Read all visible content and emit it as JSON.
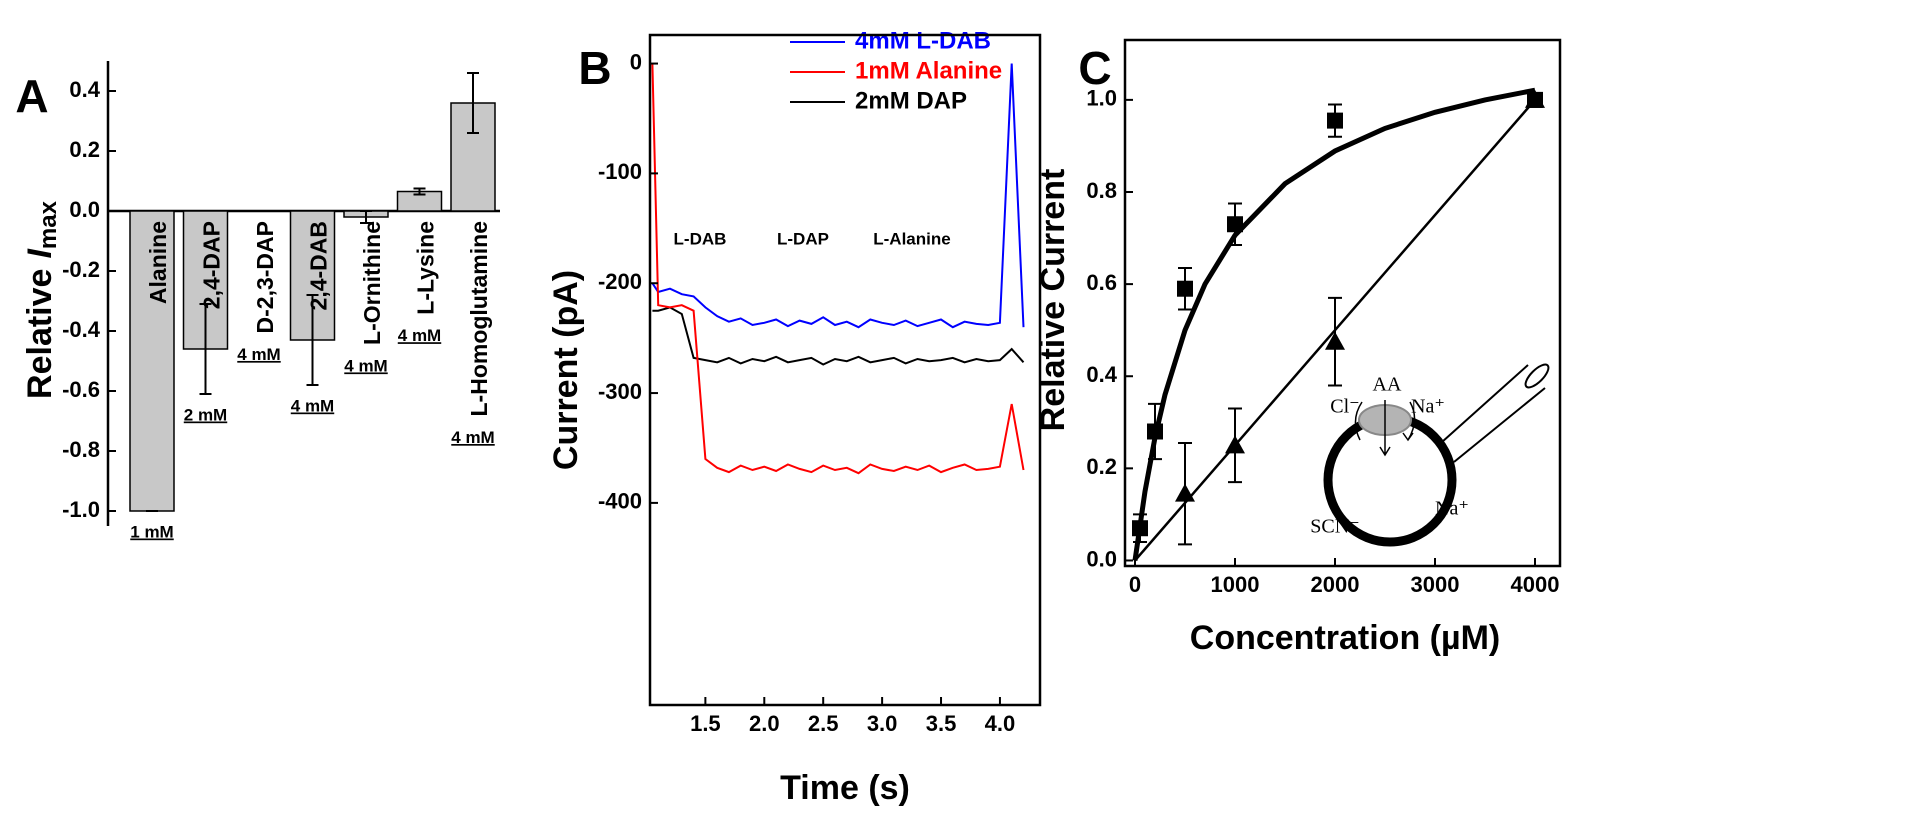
{
  "chart_data": [
    {
      "type": "bar",
      "panel_label": "A",
      "y_label": {
        "text": "Relative",
        "symbol": "I",
        "subscript": "max"
      },
      "categories": [
        "Alanine",
        "2,4-DAP",
        "D-2,3-DAP",
        "2,4-DAB",
        "L-Ornithine",
        "L-Lysine",
        "L-Homoglutamine"
      ],
      "values": [
        -1.0,
        -0.46,
        0,
        -0.43,
        -0.02,
        0.065,
        0.36
      ],
      "errors": [
        0,
        0.15,
        0,
        0.15,
        0.02,
        0.01,
        0.1
      ],
      "concentrations": [
        "1 mM",
        "2 mM",
        "4 mM",
        "4 mM",
        "4 mM",
        "4 mM",
        "4 mM"
      ],
      "color": "#c8c8c8",
      "ylim": [
        -1.05,
        0.5
      ],
      "yticks": [
        {
          "value": -1,
          "label": "-1.0"
        },
        -0.8,
        -0.6,
        -0.4,
        -0.2,
        {
          "value": 0,
          "label": "0.0"
        },
        0.2,
        0.4
      ]
    },
    {
      "type": "line",
      "panel_label": "B",
      "x_label": "Time (s)",
      "y_label": "Current (pA)",
      "x": [
        1.05,
        1.1,
        1.2,
        1.3,
        1.4,
        1.5,
        1.6,
        1.7,
        1.8,
        1.9,
        2.0,
        2.1,
        2.2,
        2.3,
        2.4,
        2.5,
        2.6,
        2.7,
        2.8,
        2.9,
        3.0,
        3.1,
        3.2,
        3.3,
        3.4,
        3.5,
        3.6,
        3.7,
        3.8,
        3.9,
        4.0,
        4.1,
        4.2
      ],
      "series": [
        {
          "name": "4mM L-DAB",
          "color": "#0000ff",
          "values": [
            -200,
            -208,
            -205,
            -210,
            -212,
            -222,
            -230,
            -235,
            -232,
            -238,
            -236,
            -233,
            -239,
            -234,
            -237,
            -231,
            -238,
            -235,
            -240,
            -233,
            -236,
            -238,
            -234,
            -239,
            -236,
            -233,
            -240,
            -235,
            -237,
            -238,
            -236,
            0,
            -240
          ]
        },
        {
          "name": "1mM Alanine",
          "color": "#ff0000",
          "values": [
            0,
            -220,
            -222,
            -220,
            -225,
            -360,
            -368,
            -372,
            -366,
            -370,
            -367,
            -371,
            -365,
            -369,
            -372,
            -366,
            -370,
            -368,
            -373,
            -365,
            -369,
            -371,
            -367,
            -370,
            -366,
            -372,
            -368,
            -365,
            -370,
            -369,
            -367,
            -310,
            -370
          ]
        },
        {
          "name": "2mM DAP",
          "color": "#000000",
          "values": [
            -225,
            -225,
            -222,
            -228,
            -268,
            -270,
            -272,
            -268,
            -273,
            -269,
            -271,
            -267,
            -272,
            -270,
            -268,
            -274,
            -269,
            -271,
            -267,
            -272,
            -270,
            -268,
            -273,
            -269,
            -271,
            -270,
            -268,
            -272,
            -269,
            -271,
            -270,
            -260,
            -272
          ]
        }
      ],
      "xlim": [
        1.03,
        4.34
      ],
      "ylim": [
        -584,
        26
      ],
      "xticks": [
        1.5,
        {
          "value": 2,
          "label": "2.0"
        },
        2.5,
        {
          "value": 3,
          "label": "3.0"
        },
        3.5,
        {
          "value": 4,
          "label": "4.0"
        }
      ],
      "yticks": [
        -400,
        -300,
        -200,
        -100,
        0
      ],
      "annotations": [
        "L-DAB",
        "L-DAP",
        "L-Alanine"
      ]
    },
    {
      "type": "scatter",
      "panel_label": "C",
      "x_label": "Concentration (µM)",
      "y_label": "Relative Current",
      "series": [
        {
          "marker": "square",
          "color": "#000000",
          "x": [
            50,
            200,
            500,
            1000,
            2000,
            4000
          ],
          "values": [
            0.07,
            0.28,
            0.59,
            0.73,
            0.955,
            1.0
          ],
          "errors": [
            0.03,
            0.06,
            0.045,
            0.045,
            0.035,
            0.015
          ]
        },
        {
          "marker": "triangle",
          "color": "#000000",
          "x": [
            500,
            1000,
            2000,
            4000
          ],
          "values": [
            0.145,
            0.25,
            0.475,
            1.0
          ],
          "errors": [
            0.11,
            0.08,
            0.095,
            0.01
          ]
        }
      ],
      "fits": [
        {
          "x": [
            0,
            100,
            200,
            300,
            500,
            700,
            1000,
            1500,
            2000,
            2500,
            3000,
            3500,
            4000
          ],
          "values": [
            0,
            0.15,
            0.267,
            0.36,
            0.5,
            0.6,
            0.706,
            0.818,
            0.889,
            0.938,
            0.973,
            1.0,
            1.021
          ]
        },
        {
          "x": [
            0,
            4000
          ],
          "values": [
            0,
            1.0
          ]
        }
      ],
      "xlim": [
        -100,
        4250
      ],
      "ylim": [
        -0.012,
        1.13
      ],
      "xticks": [
        0,
        1000,
        2000,
        3000,
        4000
      ],
      "yticks": [
        {
          "value": 0,
          "label": "0.0"
        },
        0.2,
        0.4,
        0.6,
        0.8,
        {
          "value": 1,
          "label": "1.0"
        }
      ],
      "annotations": [
        "Cl⁻",
        "AA",
        "Na⁺",
        "SCN⁻",
        "Na⁺"
      ]
    }
  ]
}
